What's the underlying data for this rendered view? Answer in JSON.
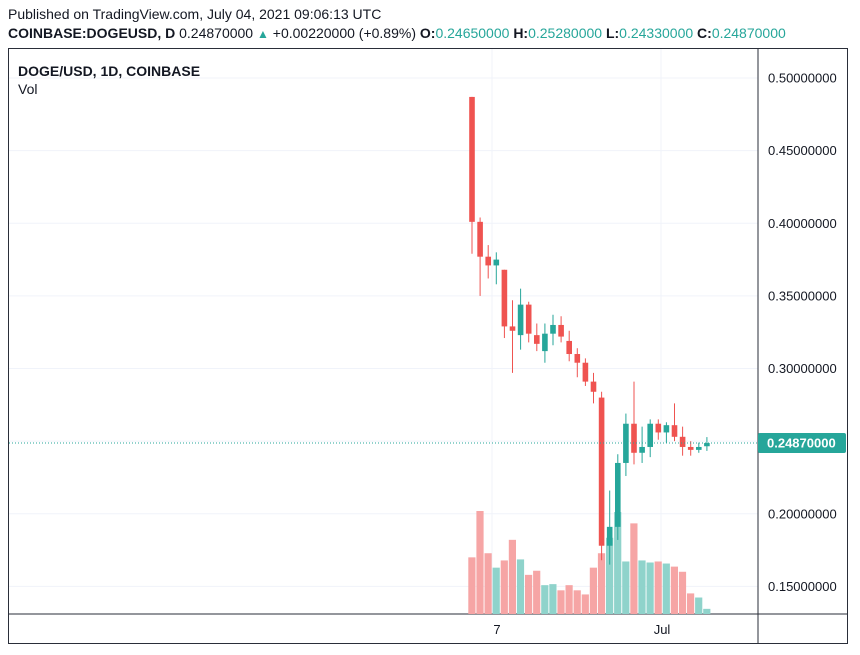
{
  "header": {
    "published": "Published on TradingView.com, July 04, 2021 09:06:13 UTC",
    "symbol": "COINBASE:DOGEUSD, D",
    "last": "0.24870000",
    "change": "+0.00220000 (+0.89%)",
    "o_label": "O:",
    "o": "0.24650000",
    "h_label": "H:",
    "h": "0.25280000",
    "l_label": "L:",
    "l": "0.24330000",
    "c_label": "C:",
    "c": "0.24870000"
  },
  "legend": {
    "title": "DOGE/USD, 1D, COINBASE",
    "vol": "Vol"
  },
  "colors": {
    "up": "#26a69a",
    "down": "#ef5350",
    "vol_up": "#8fd3cb",
    "vol_down": "#f6a5a5",
    "grid": "#f0f3fa"
  },
  "chart_data": {
    "type": "candlestick",
    "y_axis_ticks": [
      "0.50000000",
      "0.45000000",
      "0.40000000",
      "0.35000000",
      "0.30000000",
      "0.25000000",
      "0.20000000",
      "0.15000000"
    ],
    "y_ticks_values": [
      0.5,
      0.45,
      0.4,
      0.35,
      0.3,
      0.25,
      0.2,
      0.15
    ],
    "ylim": [
      0.131,
      0.52
    ],
    "x_tick_labels": [
      "7",
      "Jul"
    ],
    "last_price_label": "0.24870000",
    "last_price": 0.2487,
    "candles": [
      {
        "o": 0.487,
        "h": 0.487,
        "l": 0.379,
        "c": 0.401
      },
      {
        "o": 0.401,
        "h": 0.404,
        "l": 0.35,
        "c": 0.377
      },
      {
        "o": 0.377,
        "h": 0.385,
        "l": 0.362,
        "c": 0.371
      },
      {
        "o": 0.371,
        "h": 0.38,
        "l": 0.358,
        "c": 0.375
      },
      {
        "o": 0.368,
        "h": 0.368,
        "l": 0.321,
        "c": 0.329
      },
      {
        "o": 0.329,
        "h": 0.347,
        "l": 0.297,
        "c": 0.326
      },
      {
        "o": 0.323,
        "h": 0.355,
        "l": 0.313,
        "c": 0.344
      },
      {
        "o": 0.344,
        "h": 0.346,
        "l": 0.318,
        "c": 0.324
      },
      {
        "o": 0.323,
        "h": 0.331,
        "l": 0.312,
        "c": 0.317
      },
      {
        "o": 0.312,
        "h": 0.331,
        "l": 0.304,
        "c": 0.324
      },
      {
        "o": 0.324,
        "h": 0.337,
        "l": 0.316,
        "c": 0.33
      },
      {
        "o": 0.33,
        "h": 0.336,
        "l": 0.318,
        "c": 0.322
      },
      {
        "o": 0.319,
        "h": 0.326,
        "l": 0.305,
        "c": 0.31
      },
      {
        "o": 0.31,
        "h": 0.314,
        "l": 0.294,
        "c": 0.304
      },
      {
        "o": 0.304,
        "h": 0.307,
        "l": 0.288,
        "c": 0.291
      },
      {
        "o": 0.291,
        "h": 0.297,
        "l": 0.276,
        "c": 0.284
      },
      {
        "o": 0.28,
        "h": 0.284,
        "l": 0.168,
        "c": 0.178
      },
      {
        "o": 0.178,
        "h": 0.216,
        "l": 0.165,
        "c": 0.191
      },
      {
        "o": 0.191,
        "h": 0.241,
        "l": 0.182,
        "c": 0.235
      },
      {
        "o": 0.235,
        "h": 0.269,
        "l": 0.226,
        "c": 0.262
      },
      {
        "o": 0.262,
        "h": 0.291,
        "l": 0.234,
        "c": 0.242
      },
      {
        "o": 0.242,
        "h": 0.26,
        "l": 0.235,
        "c": 0.246
      },
      {
        "o": 0.246,
        "h": 0.265,
        "l": 0.239,
        "c": 0.262
      },
      {
        "o": 0.262,
        "h": 0.265,
        "l": 0.251,
        "c": 0.256
      },
      {
        "o": 0.256,
        "h": 0.263,
        "l": 0.249,
        "c": 0.261
      },
      {
        "o": 0.261,
        "h": 0.276,
        "l": 0.25,
        "c": 0.253
      },
      {
        "o": 0.253,
        "h": 0.26,
        "l": 0.24,
        "c": 0.246
      },
      {
        "o": 0.246,
        "h": 0.25,
        "l": 0.24,
        "c": 0.244
      },
      {
        "o": 0.244,
        "h": 0.249,
        "l": 0.242,
        "c": 0.246
      },
      {
        "o": 0.2465,
        "h": 0.2528,
        "l": 0.2433,
        "c": 0.2487
      }
    ],
    "volume_relative": [
      0.55,
      1.0,
      0.59,
      0.45,
      0.52,
      0.72,
      0.53,
      0.38,
      0.42,
      0.28,
      0.29,
      0.23,
      0.28,
      0.23,
      0.19,
      0.45,
      0.59,
      0.74,
      0.99,
      0.51,
      0.88,
      0.52,
      0.5,
      0.51,
      0.49,
      0.46,
      0.41,
      0.2,
      0.16,
      0.05
    ]
  }
}
